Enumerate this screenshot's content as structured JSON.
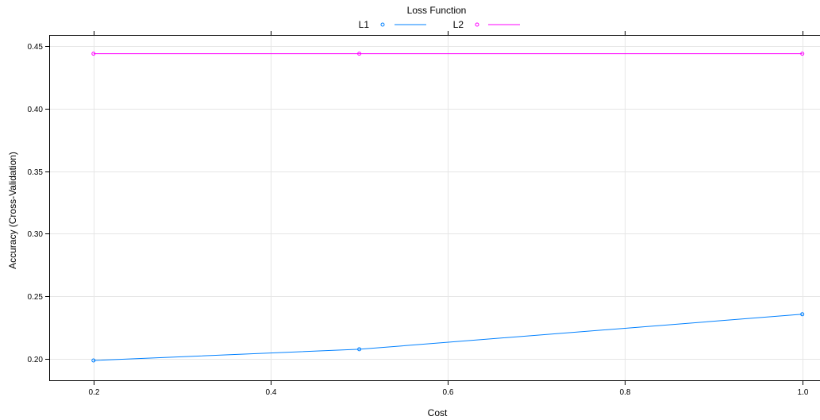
{
  "chart_data": {
    "type": "line",
    "legend_title": "Loss Function",
    "legend_placement": "top-center",
    "xlabel": "Cost",
    "ylabel": "Accuracy (Cross-Validation)",
    "xlim": [
      0.15,
      1.02
    ],
    "ylim": [
      0.182,
      0.459
    ],
    "xticks": [
      0.2,
      0.4,
      0.6,
      0.8,
      1.0
    ],
    "xtick_labels": [
      "0.2",
      "0.4",
      "0.6",
      "0.8",
      "1.0"
    ],
    "yticks": [
      0.2,
      0.25,
      0.3,
      0.35,
      0.4,
      0.45
    ],
    "ytick_labels": [
      "0.20",
      "0.25",
      "0.30",
      "0.35",
      "0.40",
      "0.45"
    ],
    "grid": true,
    "x": [
      0.2,
      0.5,
      1.0
    ],
    "series": [
      {
        "name": "L1",
        "color": "#0080ff",
        "values": [
          0.1985,
          0.2075,
          0.2355
        ]
      },
      {
        "name": "L2",
        "color": "#ff00ff",
        "values": [
          0.444,
          0.444,
          0.444
        ]
      }
    ]
  }
}
